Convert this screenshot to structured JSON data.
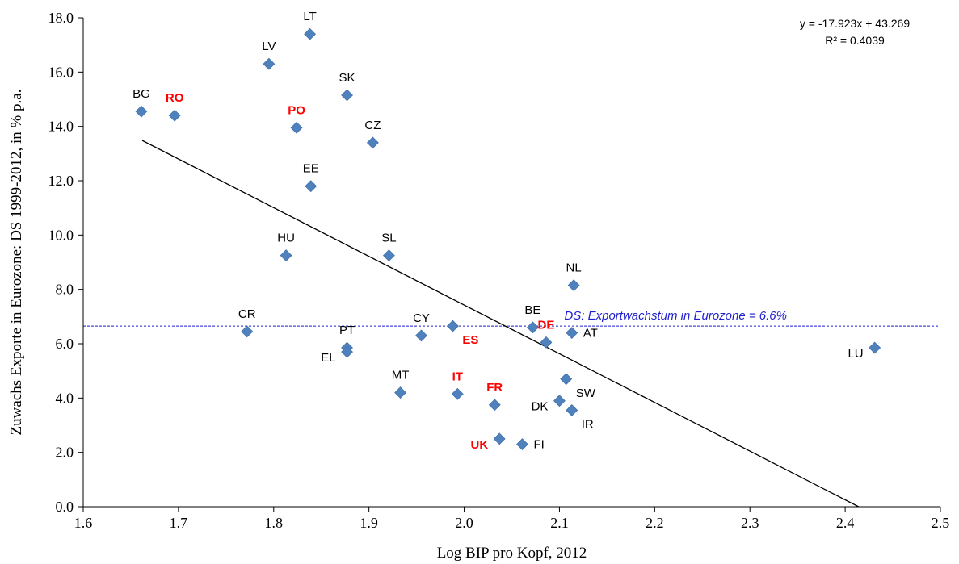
{
  "chart_data": {
    "type": "scatter",
    "title": "",
    "xlabel": "Log BIP pro Kopf, 2012",
    "ylabel": "Zuwachs Exporte in Eurozone: DS 1999-2012, in % p.a.",
    "xlim": [
      1.6,
      2.5
    ],
    "ylim": [
      0.0,
      18.0
    ],
    "x_ticks": [
      1.6,
      1.7,
      1.8,
      1.9,
      2.0,
      2.1,
      2.2,
      2.3,
      2.4,
      2.5
    ],
    "y_ticks": [
      0.0,
      2.0,
      4.0,
      6.0,
      8.0,
      10.0,
      12.0,
      14.0,
      16.0,
      18.0
    ],
    "x_tick_labels": [
      "1.6",
      "1.7",
      "1.8",
      "1.9",
      "2.0",
      "2.1",
      "2.2",
      "2.3",
      "2.4",
      "2.5"
    ],
    "y_tick_labels": [
      "0.0",
      "2.0",
      "4.0",
      "6.0",
      "8.0",
      "10.0",
      "12.0",
      "14.0",
      "16.0",
      "18.0"
    ],
    "grid": false,
    "marker_color": "#4f81bd",
    "highlight_color": "#ff0000",
    "points": [
      {
        "label": "BG",
        "x": 1.661,
        "y": 14.55,
        "highlight": false,
        "label_pos": "above"
      },
      {
        "label": "RO",
        "x": 1.696,
        "y": 14.4,
        "highlight": true,
        "label_pos": "above"
      },
      {
        "label": "LV",
        "x": 1.795,
        "y": 16.3,
        "highlight": false,
        "label_pos": "above"
      },
      {
        "label": "LT",
        "x": 1.838,
        "y": 17.4,
        "highlight": false,
        "label_pos": "above"
      },
      {
        "label": "PO",
        "x": 1.824,
        "y": 13.95,
        "highlight": true,
        "label_pos": "above"
      },
      {
        "label": "SK",
        "x": 1.877,
        "y": 15.15,
        "highlight": false,
        "label_pos": "above"
      },
      {
        "label": "CZ",
        "x": 1.904,
        "y": 13.4,
        "highlight": false,
        "label_pos": "above"
      },
      {
        "label": "EE",
        "x": 1.839,
        "y": 11.8,
        "highlight": false,
        "label_pos": "above"
      },
      {
        "label": "HU",
        "x": 1.813,
        "y": 9.25,
        "highlight": false,
        "label_pos": "above"
      },
      {
        "label": "SL",
        "x": 1.921,
        "y": 9.25,
        "highlight": false,
        "label_pos": "above"
      },
      {
        "label": "NL",
        "x": 2.115,
        "y": 8.15,
        "highlight": false,
        "label_pos": "above"
      },
      {
        "label": "CR",
        "x": 1.772,
        "y": 6.45,
        "highlight": false,
        "label_pos": "above"
      },
      {
        "label": "PT",
        "x": 1.877,
        "y": 5.85,
        "highlight": false,
        "label_pos": "above"
      },
      {
        "label": "EL",
        "x": 1.877,
        "y": 5.7,
        "highlight": false,
        "label_pos": "left"
      },
      {
        "label": "CY",
        "x": 1.955,
        "y": 6.3,
        "highlight": false,
        "label_pos": "above"
      },
      {
        "label": "ES",
        "x": 1.988,
        "y": 6.65,
        "highlight": true,
        "label_pos": "below-right"
      },
      {
        "label": "BE",
        "x": 2.072,
        "y": 6.6,
        "highlight": false,
        "label_pos": "above"
      },
      {
        "label": "DE",
        "x": 2.086,
        "y": 6.05,
        "highlight": true,
        "label_pos": "above"
      },
      {
        "label": "AT",
        "x": 2.113,
        "y": 6.4,
        "highlight": false,
        "label_pos": "right"
      },
      {
        "label": "LU",
        "x": 2.431,
        "y": 5.85,
        "highlight": false,
        "label_pos": "left"
      },
      {
        "label": "MT",
        "x": 1.933,
        "y": 4.2,
        "highlight": false,
        "label_pos": "above"
      },
      {
        "label": "IT",
        "x": 1.993,
        "y": 4.15,
        "highlight": true,
        "label_pos": "above"
      },
      {
        "label": "FR",
        "x": 2.032,
        "y": 3.75,
        "highlight": true,
        "label_pos": "above"
      },
      {
        "label": "DK",
        "x": 2.1,
        "y": 3.9,
        "highlight": false,
        "label_pos": "left"
      },
      {
        "label": "SW",
        "x": 2.107,
        "y": 4.7,
        "highlight": false,
        "label_pos": "below-right"
      },
      {
        "label": "IR",
        "x": 2.113,
        "y": 3.55,
        "highlight": false,
        "label_pos": "below-right"
      },
      {
        "label": "UK",
        "x": 2.037,
        "y": 2.5,
        "highlight": true,
        "label_pos": "left"
      },
      {
        "label": "FI",
        "x": 2.061,
        "y": 2.3,
        "highlight": false,
        "label_pos": "right"
      }
    ],
    "trendline": {
      "slope": -17.923,
      "intercept": 43.269,
      "x_start": 1.662,
      "equation": "y = -17.923x + 43.269",
      "r_squared": "R² = 0.4039",
      "color": "#000000"
    },
    "reference_line": {
      "y": 6.65,
      "label": "DS: Exportwachstum  in Eurozone  = 6.6%",
      "color": "#1f1fd0"
    }
  }
}
